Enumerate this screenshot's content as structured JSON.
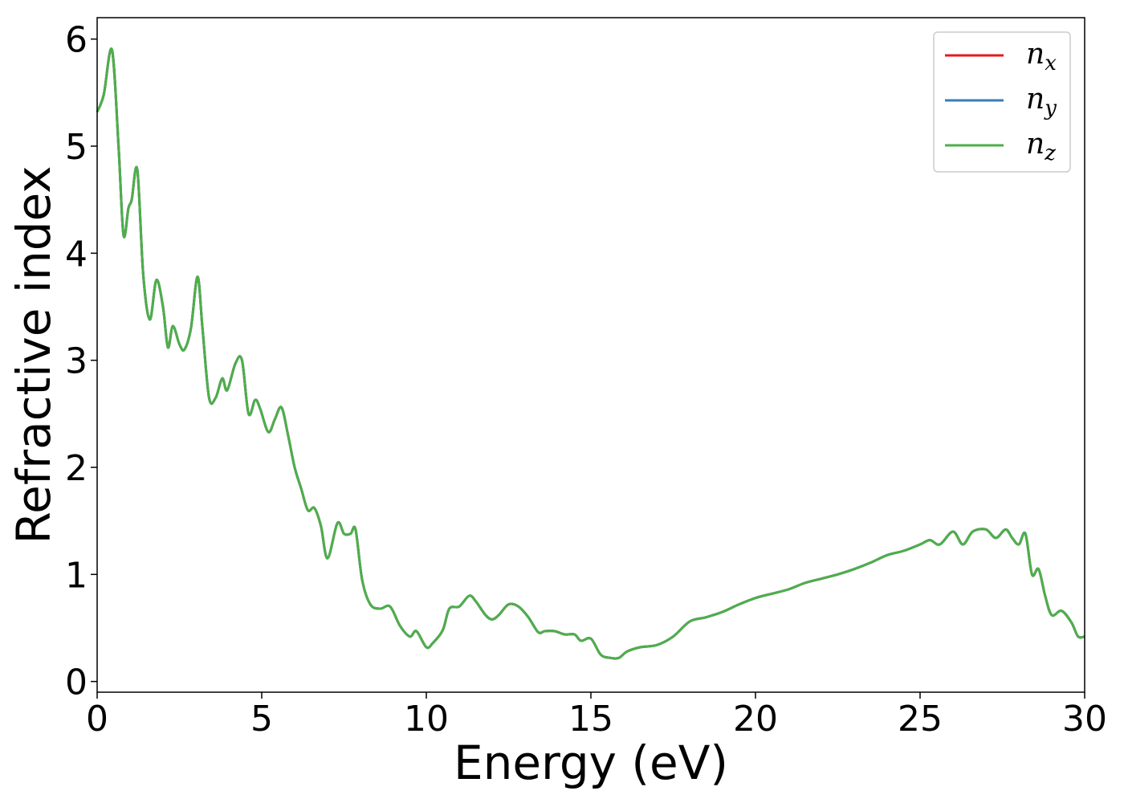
{
  "chart_data": {
    "type": "line",
    "title": "",
    "xlabel": "Energy (eV)",
    "ylabel": "Refractive index",
    "xlim": [
      0,
      30
    ],
    "ylim": [
      -0.1,
      6.2
    ],
    "xticks": [
      0,
      5,
      10,
      15,
      20,
      25,
      30
    ],
    "yticks": [
      0,
      1,
      2,
      3,
      4,
      5,
      6
    ],
    "grid": false,
    "legend_position": "top-right",
    "legend_frame": true,
    "series": [
      {
        "name": "n_x",
        "symbol": "n",
        "subscript": "x",
        "color": "#e41a1c",
        "x": [
          0,
          0.2,
          0.45,
          0.65,
          0.8,
          0.95,
          1.05,
          1.22,
          1.4,
          1.6,
          1.8,
          2.0,
          2.15,
          2.3,
          2.5,
          2.65,
          2.85,
          3.05,
          3.2,
          3.4,
          3.6,
          3.8,
          3.95,
          4.2,
          4.4,
          4.6,
          4.8,
          4.95,
          5.2,
          5.4,
          5.6,
          5.8,
          6.0,
          6.2,
          6.4,
          6.6,
          6.8,
          7.0,
          7.3,
          7.5,
          7.7,
          7.85,
          8.05,
          8.3,
          8.6,
          8.9,
          9.2,
          9.5,
          9.7,
          10.0,
          10.2,
          10.5,
          10.7,
          11.0,
          11.3,
          11.5,
          11.8,
          12.0,
          12.2,
          12.5,
          12.8,
          13.1,
          13.4,
          13.6,
          13.9,
          14.2,
          14.5,
          14.7,
          15.0,
          15.3,
          15.6,
          15.85,
          16.1,
          16.5,
          17.0,
          17.5,
          18.0,
          18.5,
          19.0,
          19.5,
          20.0,
          20.5,
          21.0,
          21.5,
          22.0,
          22.5,
          23.0,
          23.5,
          24.0,
          24.5,
          25.0,
          25.3,
          25.6,
          26.0,
          26.3,
          26.6,
          27.0,
          27.3,
          27.6,
          27.8,
          28.0,
          28.2,
          28.4,
          28.6,
          28.8,
          29.0,
          29.3,
          29.6,
          29.8,
          30.0
        ],
        "y": [
          5.32,
          5.48,
          5.9,
          5.0,
          4.17,
          4.42,
          4.5,
          4.78,
          3.8,
          3.38,
          3.75,
          3.5,
          3.12,
          3.32,
          3.15,
          3.1,
          3.3,
          3.78,
          3.3,
          2.65,
          2.65,
          2.83,
          2.72,
          2.97,
          3.0,
          2.5,
          2.63,
          2.55,
          2.33,
          2.45,
          2.56,
          2.3,
          2.0,
          1.8,
          1.6,
          1.62,
          1.45,
          1.15,
          1.48,
          1.38,
          1.38,
          1.42,
          0.95,
          0.72,
          0.68,
          0.7,
          0.52,
          0.42,
          0.47,
          0.32,
          0.36,
          0.48,
          0.68,
          0.7,
          0.8,
          0.75,
          0.62,
          0.58,
          0.62,
          0.72,
          0.7,
          0.6,
          0.46,
          0.47,
          0.47,
          0.44,
          0.44,
          0.38,
          0.4,
          0.25,
          0.22,
          0.22,
          0.28,
          0.32,
          0.34,
          0.42,
          0.56,
          0.6,
          0.65,
          0.72,
          0.78,
          0.82,
          0.86,
          0.92,
          0.96,
          1.0,
          1.05,
          1.11,
          1.18,
          1.22,
          1.28,
          1.32,
          1.28,
          1.4,
          1.28,
          1.4,
          1.42,
          1.34,
          1.42,
          1.34,
          1.28,
          1.38,
          1.0,
          1.05,
          0.8,
          0.62,
          0.66,
          0.55,
          0.42,
          0.42
        ]
      },
      {
        "name": "n_y",
        "symbol": "n",
        "subscript": "y",
        "color": "#377eb8",
        "x": [
          0,
          0.2,
          0.45,
          0.65,
          0.8,
          0.95,
          1.05,
          1.22,
          1.4,
          1.6,
          1.8,
          2.0,
          2.15,
          2.3,
          2.5,
          2.65,
          2.85,
          3.05,
          3.2,
          3.4,
          3.6,
          3.8,
          3.95,
          4.2,
          4.4,
          4.6,
          4.8,
          4.95,
          5.2,
          5.4,
          5.6,
          5.8,
          6.0,
          6.2,
          6.4,
          6.6,
          6.8,
          7.0,
          7.3,
          7.5,
          7.7,
          7.85,
          8.05,
          8.3,
          8.6,
          8.9,
          9.2,
          9.5,
          9.7,
          10.0,
          10.2,
          10.5,
          10.7,
          11.0,
          11.3,
          11.5,
          11.8,
          12.0,
          12.2,
          12.5,
          12.8,
          13.1,
          13.4,
          13.6,
          13.9,
          14.2,
          14.5,
          14.7,
          15.0,
          15.3,
          15.6,
          15.85,
          16.1,
          16.5,
          17.0,
          17.5,
          18.0,
          18.5,
          19.0,
          19.5,
          20.0,
          20.5,
          21.0,
          21.5,
          22.0,
          22.5,
          23.0,
          23.5,
          24.0,
          24.5,
          25.0,
          25.3,
          25.6,
          26.0,
          26.3,
          26.6,
          27.0,
          27.3,
          27.6,
          27.8,
          28.0,
          28.2,
          28.4,
          28.6,
          28.8,
          29.0,
          29.3,
          29.6,
          29.8,
          30.0
        ],
        "y": [
          5.32,
          5.48,
          5.9,
          5.0,
          4.17,
          4.42,
          4.5,
          4.78,
          3.8,
          3.38,
          3.75,
          3.5,
          3.12,
          3.32,
          3.15,
          3.1,
          3.3,
          3.78,
          3.3,
          2.65,
          2.65,
          2.83,
          2.72,
          2.97,
          3.0,
          2.5,
          2.63,
          2.55,
          2.33,
          2.45,
          2.56,
          2.3,
          2.0,
          1.8,
          1.6,
          1.62,
          1.45,
          1.15,
          1.48,
          1.38,
          1.38,
          1.42,
          0.95,
          0.72,
          0.68,
          0.7,
          0.52,
          0.42,
          0.47,
          0.32,
          0.36,
          0.48,
          0.68,
          0.7,
          0.8,
          0.75,
          0.62,
          0.58,
          0.62,
          0.72,
          0.7,
          0.6,
          0.46,
          0.47,
          0.47,
          0.44,
          0.44,
          0.38,
          0.4,
          0.25,
          0.22,
          0.22,
          0.28,
          0.32,
          0.34,
          0.42,
          0.56,
          0.6,
          0.65,
          0.72,
          0.78,
          0.82,
          0.86,
          0.92,
          0.96,
          1.0,
          1.05,
          1.11,
          1.18,
          1.22,
          1.28,
          1.32,
          1.28,
          1.4,
          1.28,
          1.4,
          1.42,
          1.34,
          1.42,
          1.34,
          1.28,
          1.38,
          1.0,
          1.05,
          0.8,
          0.62,
          0.66,
          0.55,
          0.42,
          0.42
        ]
      },
      {
        "name": "n_z",
        "symbol": "n",
        "subscript": "z",
        "color": "#4daf4a",
        "x": [
          0,
          0.2,
          0.45,
          0.65,
          0.8,
          0.95,
          1.05,
          1.22,
          1.4,
          1.6,
          1.8,
          2.0,
          2.15,
          2.3,
          2.5,
          2.65,
          2.85,
          3.05,
          3.2,
          3.4,
          3.6,
          3.8,
          3.95,
          4.2,
          4.4,
          4.6,
          4.8,
          4.95,
          5.2,
          5.4,
          5.6,
          5.8,
          6.0,
          6.2,
          6.4,
          6.6,
          6.8,
          7.0,
          7.3,
          7.5,
          7.7,
          7.85,
          8.05,
          8.3,
          8.6,
          8.9,
          9.2,
          9.5,
          9.7,
          10.0,
          10.2,
          10.5,
          10.7,
          11.0,
          11.3,
          11.5,
          11.8,
          12.0,
          12.2,
          12.5,
          12.8,
          13.1,
          13.4,
          13.6,
          13.9,
          14.2,
          14.5,
          14.7,
          15.0,
          15.3,
          15.6,
          15.85,
          16.1,
          16.5,
          17.0,
          17.5,
          18.0,
          18.5,
          19.0,
          19.5,
          20.0,
          20.5,
          21.0,
          21.5,
          22.0,
          22.5,
          23.0,
          23.5,
          24.0,
          24.5,
          25.0,
          25.3,
          25.6,
          26.0,
          26.3,
          26.6,
          27.0,
          27.3,
          27.6,
          27.8,
          28.0,
          28.2,
          28.4,
          28.6,
          28.8,
          29.0,
          29.3,
          29.6,
          29.8,
          30.0
        ],
        "y": [
          5.32,
          5.48,
          5.9,
          5.0,
          4.17,
          4.42,
          4.5,
          4.78,
          3.8,
          3.38,
          3.75,
          3.5,
          3.12,
          3.32,
          3.15,
          3.1,
          3.3,
          3.78,
          3.3,
          2.65,
          2.65,
          2.83,
          2.72,
          2.97,
          3.0,
          2.5,
          2.63,
          2.55,
          2.33,
          2.45,
          2.56,
          2.3,
          2.0,
          1.8,
          1.6,
          1.62,
          1.45,
          1.15,
          1.48,
          1.38,
          1.38,
          1.42,
          0.95,
          0.72,
          0.68,
          0.7,
          0.52,
          0.42,
          0.47,
          0.32,
          0.36,
          0.48,
          0.68,
          0.7,
          0.8,
          0.75,
          0.62,
          0.58,
          0.62,
          0.72,
          0.7,
          0.6,
          0.46,
          0.47,
          0.47,
          0.44,
          0.44,
          0.38,
          0.4,
          0.25,
          0.22,
          0.22,
          0.28,
          0.32,
          0.34,
          0.42,
          0.56,
          0.6,
          0.65,
          0.72,
          0.78,
          0.82,
          0.86,
          0.92,
          0.96,
          1.0,
          1.05,
          1.11,
          1.18,
          1.22,
          1.28,
          1.32,
          1.28,
          1.4,
          1.28,
          1.4,
          1.42,
          1.34,
          1.42,
          1.34,
          1.28,
          1.38,
          1.0,
          1.05,
          0.8,
          0.62,
          0.66,
          0.55,
          0.42,
          0.42
        ]
      }
    ]
  }
}
